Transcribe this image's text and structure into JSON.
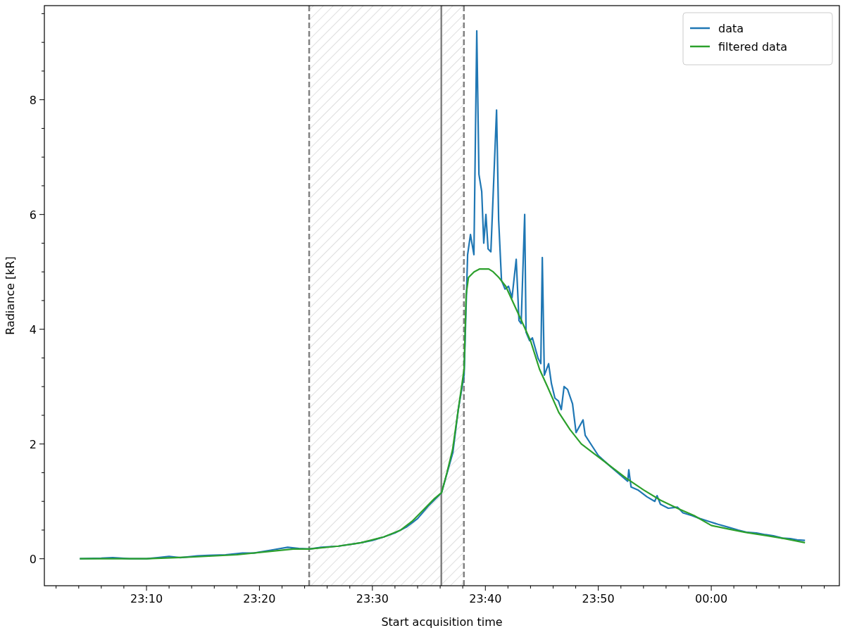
{
  "chart_data": {
    "type": "line",
    "xlabel": "Start acquisition time",
    "ylabel": "Radiance [kR]",
    "xlim": [
      23.016,
      24.189
    ],
    "ylim": [
      -0.47,
      9.64
    ],
    "xticks": [
      {
        "value": 23.0333,
        "label": null
      },
      {
        "value": 23.0667,
        "label": null
      },
      {
        "value": 23.1,
        "label": null
      },
      {
        "value": 23.1333,
        "label": null
      },
      {
        "value": 23.1667,
        "label": "23:10"
      },
      {
        "value": 23.2,
        "label": null
      },
      {
        "value": 23.2333,
        "label": null
      },
      {
        "value": 23.2667,
        "label": null
      },
      {
        "value": 23.3,
        "label": null
      },
      {
        "value": 23.3333,
        "label": "23:20"
      },
      {
        "value": 23.3667,
        "label": null
      },
      {
        "value": 23.4,
        "label": null
      },
      {
        "value": 23.4333,
        "label": null
      },
      {
        "value": 23.4667,
        "label": null
      },
      {
        "value": 23.5,
        "label": "23:30"
      },
      {
        "value": 23.5333,
        "label": null
      },
      {
        "value": 23.5667,
        "label": null
      },
      {
        "value": 23.6,
        "label": null
      },
      {
        "value": 23.6333,
        "label": null
      },
      {
        "value": 23.6667,
        "label": "23:40"
      },
      {
        "value": 23.7,
        "label": null
      },
      {
        "value": 23.7333,
        "label": null
      },
      {
        "value": 23.7667,
        "label": null
      },
      {
        "value": 23.8,
        "label": null
      },
      {
        "value": 23.8333,
        "label": "23:50"
      },
      {
        "value": 23.8667,
        "label": null
      },
      {
        "value": 23.9,
        "label": null
      },
      {
        "value": 23.9333,
        "label": null
      },
      {
        "value": 23.9667,
        "label": null
      },
      {
        "value": 24.0,
        "label": "00:00"
      },
      {
        "value": 24.0333,
        "label": null
      },
      {
        "value": 24.0667,
        "label": null
      },
      {
        "value": 24.1,
        "label": null
      },
      {
        "value": 24.1333,
        "label": null
      },
      {
        "value": 24.1667,
        "label": null
      }
    ],
    "yticks": [
      0,
      {
        "value": 0.5,
        "label": null
      },
      {
        "value": 1,
        "label": null
      },
      {
        "value": 1.5,
        "label": null
      },
      2,
      {
        "value": 2.5,
        "label": null
      },
      {
        "value": 3,
        "label": null
      },
      {
        "value": 3.5,
        "label": null
      },
      4,
      {
        "value": 4.5,
        "label": null
      },
      {
        "value": 5,
        "label": null
      },
      {
        "value": 5.5,
        "label": null
      },
      6,
      {
        "value": 6.5,
        "label": null
      },
      {
        "value": 7,
        "label": null
      },
      {
        "value": 7.5,
        "label": null
      },
      8,
      {
        "value": 8.5,
        "label": null
      },
      {
        "value": 9,
        "label": null
      },
      {
        "value": 9.5,
        "label": null
      }
    ],
    "legend": "top right",
    "grid": false,
    "bands": [
      {
        "axis": "x",
        "from": 23.4067,
        "to": 23.635,
        "color": "#d3d3d3"
      }
    ],
    "ref_lines": [
      {
        "axis": "x",
        "value": 23.4067,
        "color": "#808080",
        "line_style": "dashed"
      },
      {
        "axis": "x",
        "value": 23.6017,
        "color": "#808080",
        "line_style": "solid"
      },
      {
        "axis": "x",
        "value": 23.635,
        "color": "#808080",
        "line_style": "dashed"
      }
    ],
    "series": [
      {
        "name": "data",
        "color": "#1f77b4",
        "x": [
          23.0683,
          23.1,
          23.1167,
          23.1417,
          23.1667,
          23.1833,
          23.2,
          23.2167,
          23.2417,
          23.2583,
          23.2833,
          23.3083,
          23.325,
          23.35,
          23.375,
          23.3917,
          23.4067,
          23.425,
          23.45,
          23.4667,
          23.4833,
          23.5,
          23.5167,
          23.5333,
          23.55,
          23.5667,
          23.5833,
          23.602,
          23.6187,
          23.6267,
          23.6353,
          23.6405,
          23.6447,
          23.6498,
          23.654,
          23.6572,
          23.6613,
          23.6643,
          23.6675,
          23.6707,
          23.6748,
          23.6832,
          23.6863,
          23.6905,
          23.6957,
          23.7008,
          23.706,
          23.7122,
          23.7163,
          23.7195,
          23.7247,
          23.7267,
          23.732,
          23.736,
          23.7443,
          23.7485,
          23.7507,
          23.7537,
          23.76,
          23.7642,
          23.7693,
          23.7745,
          23.7787,
          23.7828,
          23.788,
          23.7953,
          23.8005,
          23.8108,
          23.814,
          23.825,
          23.8333,
          23.85,
          23.8667,
          23.8767,
          23.8783,
          23.8817,
          23.8917,
          23.905,
          23.9167,
          23.92,
          23.925,
          23.9367,
          23.95,
          23.9583,
          23.9717,
          23.9833,
          23.9967,
          24.01,
          24.025,
          24.04,
          24.0533,
          24.0667,
          24.08,
          24.0917,
          24.105,
          24.1167,
          24.1267,
          24.1383
        ],
        "values": [
          0.0,
          0.01,
          0.02,
          0.0,
          0.0,
          0.02,
          0.04,
          0.02,
          0.05,
          0.06,
          0.07,
          0.1,
          0.1,
          0.15,
          0.2,
          0.18,
          0.17,
          0.2,
          0.22,
          0.25,
          0.28,
          0.32,
          0.38,
          0.45,
          0.55,
          0.7,
          0.93,
          1.15,
          1.85,
          2.6,
          3.2,
          5.3,
          5.65,
          5.3,
          9.2,
          6.7,
          6.4,
          5.5,
          6.0,
          5.4,
          5.35,
          7.82,
          5.9,
          4.85,
          4.7,
          4.75,
          4.55,
          5.22,
          4.15,
          4.1,
          6.0,
          3.95,
          3.8,
          3.85,
          3.5,
          3.4,
          5.25,
          3.2,
          3.4,
          3.05,
          2.8,
          2.75,
          2.6,
          3.0,
          2.95,
          2.7,
          2.2,
          2.42,
          2.15,
          1.95,
          1.8,
          1.62,
          1.45,
          1.35,
          1.55,
          1.25,
          1.2,
          1.08,
          1.0,
          1.1,
          0.95,
          0.88,
          0.9,
          0.8,
          0.75,
          0.7,
          0.65,
          0.6,
          0.55,
          0.5,
          0.46,
          0.45,
          0.42,
          0.4,
          0.36,
          0.35,
          0.33,
          0.32
        ]
      },
      {
        "name": "filtered data",
        "color": "#2ca02c",
        "x": [
          23.0683,
          23.1667,
          23.2333,
          23.3,
          23.35,
          23.3833,
          23.4067,
          23.45,
          23.4833,
          23.5167,
          23.5417,
          23.5583,
          23.575,
          23.5917,
          23.602,
          23.61,
          23.6183,
          23.6267,
          23.6353,
          23.6383,
          23.6417,
          23.65,
          23.6583,
          23.6717,
          23.6783,
          23.6867,
          23.6967,
          23.7083,
          23.72,
          23.7333,
          23.7467,
          23.7583,
          23.775,
          23.7917,
          23.8083,
          23.825,
          23.8417,
          23.8583,
          23.875,
          23.9,
          23.925,
          23.95,
          23.975,
          24.0,
          24.025,
          24.05,
          24.0833,
          24.1083,
          24.1383
        ],
        "values": [
          0.0,
          0.0,
          0.03,
          0.07,
          0.13,
          0.17,
          0.17,
          0.22,
          0.28,
          0.38,
          0.5,
          0.65,
          0.85,
          1.05,
          1.15,
          1.5,
          1.9,
          2.6,
          3.3,
          4.6,
          4.9,
          5.0,
          5.05,
          5.05,
          5.0,
          4.9,
          4.75,
          4.45,
          4.15,
          3.8,
          3.3,
          3.0,
          2.55,
          2.25,
          2.0,
          1.85,
          1.7,
          1.55,
          1.4,
          1.2,
          1.02,
          0.88,
          0.75,
          0.58,
          0.52,
          0.46,
          0.4,
          0.35,
          0.28
        ]
      }
    ]
  }
}
